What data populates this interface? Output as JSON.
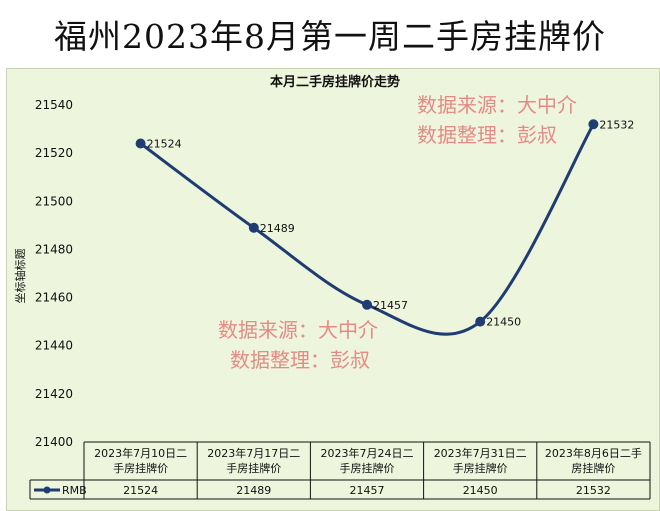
{
  "banner": {
    "title": "福州2023年8月第一周二手房挂牌价"
  },
  "chart_data": {
    "type": "line",
    "title": "本月二手房挂牌价走势",
    "ylabel": "坐标轴标题",
    "xlabel": "",
    "categories": [
      [
        "2023年7月10日二",
        "手房挂牌价"
      ],
      [
        "2023年7月17日二",
        "手房挂牌价"
      ],
      [
        "2023年7月24日二",
        "手房挂牌价"
      ],
      [
        "2023年7月31日二",
        "手房挂牌价"
      ],
      [
        "2023年8月6日二手",
        "房挂牌价"
      ]
    ],
    "series": [
      {
        "name": "RMB",
        "values": [
          21524,
          21489,
          21457,
          21450,
          21532
        ]
      }
    ],
    "ylim": [
      21400,
      21540
    ],
    "yticks": [
      21400,
      21420,
      21440,
      21460,
      21480,
      21500,
      21520,
      21540
    ],
    "smooth": true,
    "line_color": "#1f3c73",
    "grid": false,
    "legend": "data-table"
  },
  "watermarks": [
    {
      "line1": "数据来源：大中介",
      "line2": "数据整理：彭叔"
    },
    {
      "line1": "数据来源：大中介",
      "line2": "数据整理：彭叔"
    }
  ]
}
